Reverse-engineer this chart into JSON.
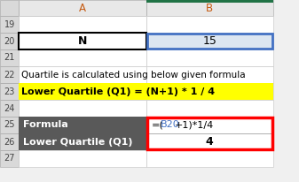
{
  "bg_color": "#f0f0f0",
  "header_bg": "#d9d9d9",
  "col_header_bg": "#e8e8e8",
  "green_top": "#217346",
  "col_A_label": "A",
  "col_B_label": "B",
  "cell_N_label": "N",
  "cell_15_label": "15",
  "row22_text": "Quartile is calculated using below given formula",
  "row23_text": "Lower Quartile (Q1) = (N+1) * 1 / 4",
  "row23_bg": "#ffff00",
  "row25_label": "Formula",
  "row25_formula_part1": "=(",
  "row25_formula_B20": "B20",
  "row25_formula_part2": "+1)*1/4",
  "row26_label": "Lower Quartile (Q1)",
  "row26_value": "4",
  "dark_row_bg": "#595959",
  "dark_row_text": "#ffffff",
  "red_border": "#ff0000",
  "blue_border": "#4472c4",
  "blue_fill": "#dce6f1",
  "blue_text": "#4472c4",
  "orange_text": "#c55a11",
  "black_text": "#000000"
}
